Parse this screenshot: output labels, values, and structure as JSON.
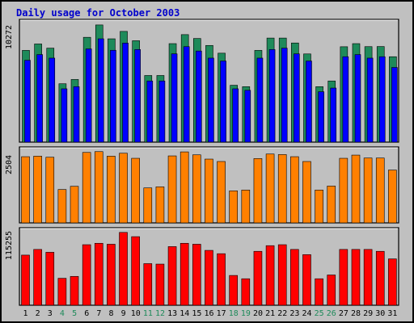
{
  "title": "Daily usage for October 2003",
  "chart_data": [
    {
      "type": "bar",
      "panel": "top",
      "categories": [
        "1",
        "2",
        "3",
        "4",
        "5",
        "6",
        "7",
        "8",
        "9",
        "10",
        "11",
        "12",
        "13",
        "14",
        "15",
        "16",
        "17",
        "18",
        "19",
        "20",
        "21",
        "22",
        "23",
        "24",
        "25",
        "26",
        "27",
        "28",
        "29",
        "30",
        "31"
      ],
      "series": [
        {
          "color": "#1e8a5a",
          "values": [
            8550,
            9150,
            8760,
            5440,
            5840,
            9770,
            10920,
            9630,
            10320,
            9450,
            6210,
            6210,
            9180,
            10020,
            9660,
            9010,
            8290,
            5300,
            5170,
            8550,
            9700,
            9700,
            9240,
            8220,
            5170,
            5700,
            8890,
            9180,
            8900,
            8910,
            7960
          ]
        },
        {
          "color": "#0000ff",
          "values": [
            7630,
            8160,
            7830,
            4970,
            5170,
            8690,
            9630,
            8560,
            9230,
            8630,
            5700,
            5700,
            8230,
            8900,
            8490,
            7830,
            7560,
            4970,
            4830,
            7830,
            8630,
            8760,
            8230,
            7560,
            4700,
            5040,
            7960,
            8160,
            7830,
            7960,
            6960
          ]
        }
      ],
      "yticks": [
        "10272"
      ]
    },
    {
      "type": "bar",
      "panel": "middle",
      "categories": [
        "1",
        "2",
        "3",
        "4",
        "5",
        "6",
        "7",
        "8",
        "9",
        "10",
        "11",
        "12",
        "13",
        "14",
        "15",
        "16",
        "17",
        "18",
        "19",
        "20",
        "21",
        "22",
        "23",
        "24",
        "25",
        "26",
        "27",
        "28",
        "29",
        "30",
        "31"
      ],
      "series": [
        {
          "color": "#ff8000",
          "values": [
            2480,
            2500,
            2460,
            1250,
            1370,
            2640,
            2670,
            2500,
            2610,
            2420,
            1310,
            1350,
            2510,
            2660,
            2550,
            2390,
            2300,
            1200,
            1230,
            2410,
            2580,
            2560,
            2480,
            2300,
            1230,
            1380,
            2420,
            2540,
            2430,
            2430,
            1980
          ]
        }
      ],
      "yticks": [
        "2504"
      ]
    },
    {
      "type": "bar",
      "panel": "bottom",
      "categories": [
        "1",
        "2",
        "3",
        "4",
        "5",
        "6",
        "7",
        "8",
        "9",
        "10",
        "11",
        "12",
        "13",
        "14",
        "15",
        "16",
        "17",
        "18",
        "19",
        "20",
        "21",
        "22",
        "23",
        "24",
        "25",
        "26",
        "27",
        "28",
        "29",
        "30",
        "31"
      ],
      "series": [
        {
          "color": "#ff0000",
          "values": [
            106000,
            118000,
            112000,
            57000,
            61000,
            128000,
            131000,
            129000,
            154000,
            145000,
            88000,
            87000,
            124000,
            131000,
            129000,
            116000,
            109000,
            63000,
            56000,
            114000,
            126000,
            128000,
            118000,
            107000,
            56000,
            64000,
            118000,
            118000,
            118000,
            114000,
            98000
          ]
        }
      ],
      "yticks": [
        "115255"
      ]
    }
  ],
  "x_labels": {
    "weekday_color": "#000000",
    "weekend_color": "#1e8a5a",
    "weekend_days": [
      "4",
      "5",
      "11",
      "12",
      "18",
      "19",
      "25",
      "26"
    ]
  }
}
